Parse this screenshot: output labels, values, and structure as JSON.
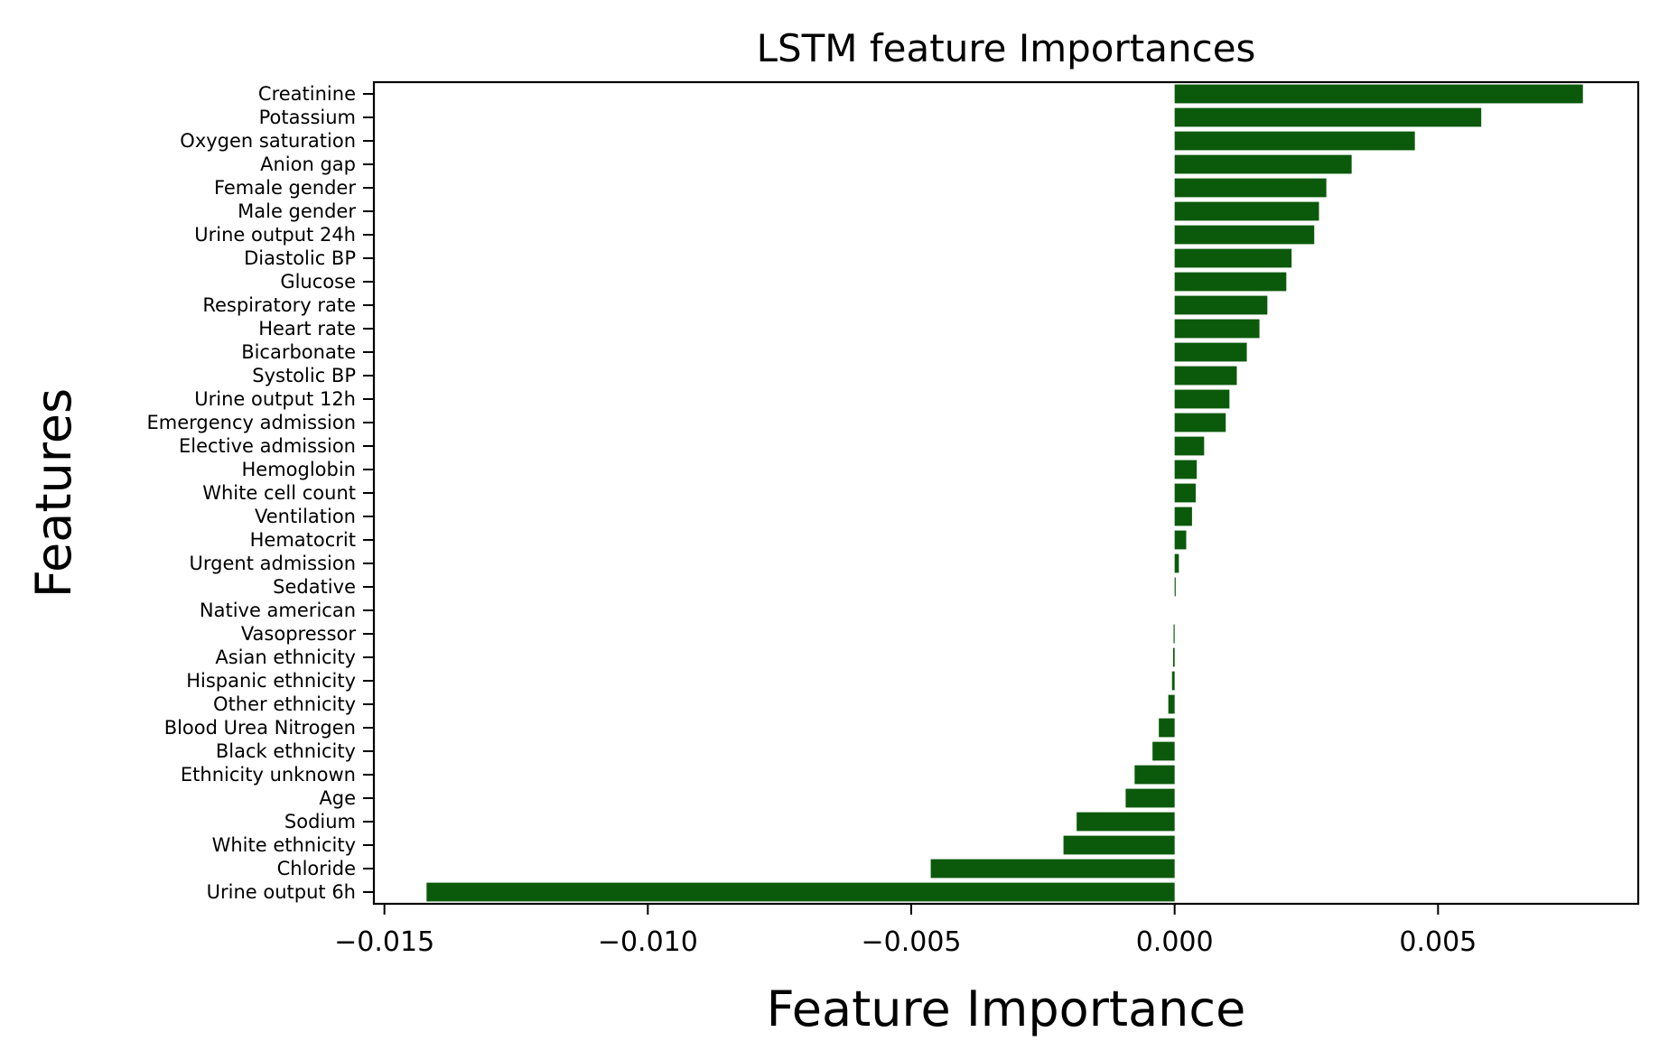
{
  "chart_data": {
    "type": "bar",
    "orientation": "horizontal",
    "title": "LSTM feature Importances",
    "xlabel": "Feature Importance",
    "ylabel": "Features",
    "xlim": [
      -0.0152,
      0.0088
    ],
    "xticks": [
      -0.015,
      -0.01,
      -0.005,
      0.0,
      0.005
    ],
    "xtick_labels": [
      "−0.015",
      "−0.010",
      "−0.005",
      "0.000",
      "0.005"
    ],
    "grid": false,
    "bar_color": "#0b5a0b",
    "categories": [
      "Creatinine",
      "Potassium",
      "Oxygen saturation",
      "Anion gap",
      "Female gender",
      "Male gender",
      "Urine output 24h",
      "Diastolic BP",
      "Glucose",
      "Respiratory rate",
      "Heart rate",
      "Bicarbonate",
      "Systolic BP",
      "Urine output 12h",
      "Emergency admission",
      "Elective admission",
      "Hemoglobin",
      "White cell count",
      "Ventilation",
      "Hematocrit",
      "Urgent admission",
      "Sedative",
      "Native american",
      "Vasopressor",
      "Asian ethnicity",
      "Hispanic ethnicity",
      "Other ethnicity",
      "Blood Urea Nitrogen",
      "Black ethnicity",
      "Ethnicity unknown",
      "Age",
      "Sodium",
      "White ethnicity",
      "Chloride",
      "Urine output 6h"
    ],
    "values": [
      0.00775,
      0.00582,
      0.00456,
      0.00336,
      0.00288,
      0.00274,
      0.00265,
      0.00222,
      0.00212,
      0.00176,
      0.00161,
      0.00137,
      0.00118,
      0.00104,
      0.00097,
      0.00056,
      0.00042,
      0.0004,
      0.00033,
      0.00022,
      8e-05,
      2e-05,
      0.0,
      -2e-05,
      -3e-05,
      -5e-05,
      -0.00012,
      -0.0003,
      -0.00042,
      -0.00076,
      -0.00093,
      -0.00186,
      -0.00211,
      -0.00463,
      -0.0142
    ]
  }
}
